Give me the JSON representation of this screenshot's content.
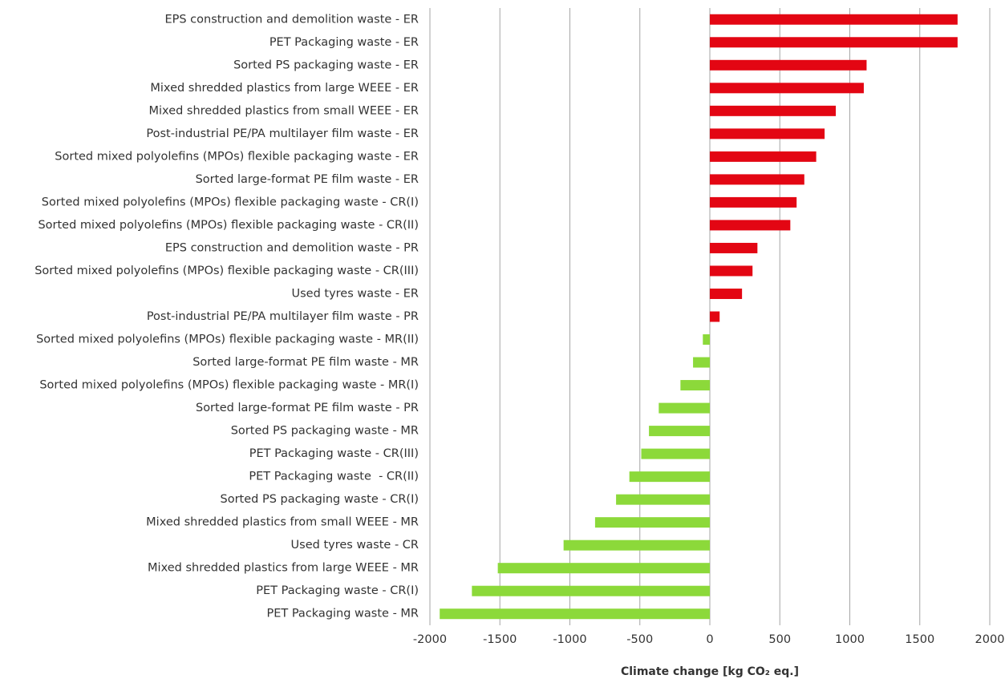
{
  "chart_data": {
    "type": "hbar",
    "x_label": "Climate change [kg CO₂ eq.]",
    "categories": [
      "EPS construction and demolition waste - ER",
      "PET Packaging waste - ER",
      "Sorted PS packaging waste - ER",
      "Mixed shredded plastics from large WEEE - ER",
      "Mixed shredded plastics from small WEEE - ER",
      "Post-industrial PE/PA multilayer film waste - ER",
      "Sorted mixed polyolefins (MPOs) flexible packaging waste - ER",
      "Sorted large-format PE film waste - ER",
      "Sorted mixed polyolefins (MPOs) flexible packaging waste - CR(I)",
      "Sorted mixed polyolefins (MPOs) flexible packaging waste - CR(II)",
      "EPS construction and demolition waste - PR",
      "Sorted mixed polyolefins (MPOs) flexible packaging waste - CR(III)",
      "Used tyres waste - ER",
      "Post-industrial PE/PA multilayer film waste - PR",
      "Sorted mixed polyolefins (MPOs) flexible packaging waste - MR(II)",
      "Sorted large-format PE film waste - MR",
      "Sorted mixed polyolefins (MPOs) flexible packaging waste - MR(I)",
      "Sorted large-format PE film waste - PR",
      "Sorted PS packaging waste - MR",
      "PET Packaging waste - CR(III)",
      "PET Packaging waste  - CR(II)",
      "Sorted PS packaging waste - CR(I)",
      "Mixed shredded plastics from small WEEE - MR",
      "Used tyres waste - CR",
      "Mixed shredded plastics from large WEEE - MR",
      "PET Packaging waste - CR(I)",
      "PET Packaging waste - MR"
    ],
    "values": [
      1770,
      1770,
      1120,
      1100,
      900,
      820,
      760,
      675,
      620,
      575,
      340,
      305,
      230,
      70,
      -50,
      -120,
      -210,
      -365,
      -435,
      -490,
      -575,
      -670,
      -820,
      -1045,
      -1515,
      -1700,
      -1930
    ],
    "positive_color": "#e30613",
    "negative_color": "#8cd93a",
    "xlim": [
      -2000,
      2000
    ],
    "xticks": [
      -2000,
      -1500,
      -1000,
      -500,
      0,
      500,
      1000,
      1500,
      2000
    ],
    "grid": true
  }
}
